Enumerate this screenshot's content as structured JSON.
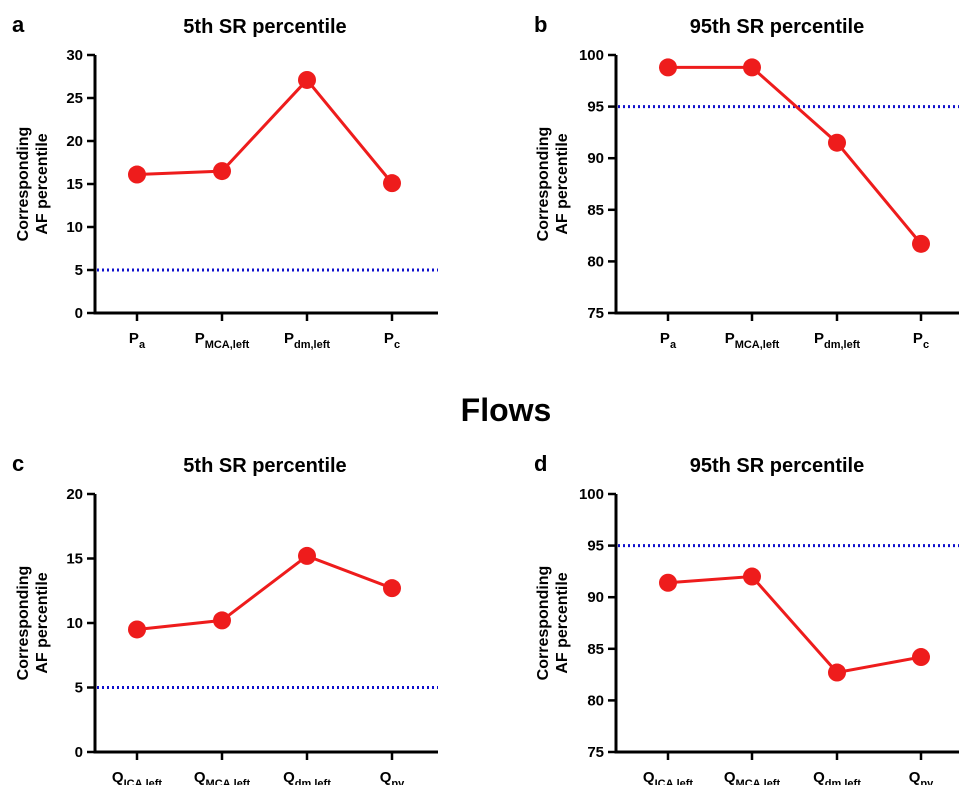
{
  "section_title": "Flows",
  "chart_data": [
    {
      "type": "line",
      "panel": "a",
      "title": "5th SR percentile",
      "ylabel": [
        "Corresponding",
        "AF percentile"
      ],
      "xlabel": "",
      "categories": [
        {
          "main": "P",
          "sub": "a"
        },
        {
          "main": "P",
          "sub": "MCA,left"
        },
        {
          "main": "P",
          "sub": "dm,left"
        },
        {
          "main": "P",
          "sub": "c"
        }
      ],
      "values": [
        16.1,
        16.5,
        27.1,
        15.1
      ],
      "ylim": [
        0,
        30
      ],
      "yticks": [
        0,
        5,
        10,
        15,
        20,
        25,
        30
      ],
      "reference_line": 5,
      "line_color": "#ee1c1c",
      "reference_color": "#1010cc"
    },
    {
      "type": "line",
      "panel": "b",
      "title": "95th SR percentile",
      "ylabel": [
        "Corresponding",
        "AF percentile"
      ],
      "xlabel": "",
      "categories": [
        {
          "main": "P",
          "sub": "a"
        },
        {
          "main": "P",
          "sub": "MCA,left"
        },
        {
          "main": "P",
          "sub": "dm,left"
        },
        {
          "main": "P",
          "sub": "c"
        }
      ],
      "values": [
        98.8,
        98.8,
        91.5,
        81.7
      ],
      "ylim": [
        75,
        100
      ],
      "yticks": [
        75,
        80,
        85,
        90,
        95,
        100
      ],
      "reference_line": 95,
      "line_color": "#ee1c1c",
      "reference_color": "#1010cc"
    },
    {
      "type": "line",
      "panel": "c",
      "title": "5th SR percentile",
      "ylabel": [
        "Corresponding",
        "AF percentile"
      ],
      "xlabel": "",
      "categories": [
        {
          "main": "Q",
          "sub": "ICA,left"
        },
        {
          "main": "Q",
          "sub": "MCA,left"
        },
        {
          "main": "Q",
          "sub": "dm,left"
        },
        {
          "main": "Q",
          "sub": "pv"
        }
      ],
      "values": [
        9.5,
        10.2,
        15.2,
        12.7
      ],
      "ylim": [
        0,
        20
      ],
      "yticks": [
        0,
        5,
        10,
        15,
        20
      ],
      "reference_line": 5,
      "line_color": "#ee1c1c",
      "reference_color": "#1010cc"
    },
    {
      "type": "line",
      "panel": "d",
      "title": "95th SR percentile",
      "ylabel": [
        "Corresponding",
        "AF percentile"
      ],
      "xlabel": "",
      "categories": [
        {
          "main": "Q",
          "sub": "ICA,left"
        },
        {
          "main": "Q",
          "sub": "MCA,left"
        },
        {
          "main": "Q",
          "sub": "dm,left"
        },
        {
          "main": "Q",
          "sub": "pv"
        }
      ],
      "values": [
        91.4,
        92.0,
        82.7,
        84.2
      ],
      "ylim": [
        75,
        100
      ],
      "yticks": [
        75,
        80,
        85,
        90,
        95,
        100
      ],
      "reference_line": 95,
      "line_color": "#ee1c1c",
      "reference_color": "#1010cc"
    }
  ]
}
